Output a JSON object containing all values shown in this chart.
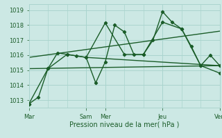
{
  "bg_color": "#cce8e4",
  "grid_color": "#aad4ce",
  "line_color": "#1a5c28",
  "xlabel": "Pression niveau de la mer( hPa )",
  "ylim": [
    1012.5,
    1019.4
  ],
  "yticks": [
    1013,
    1014,
    1015,
    1016,
    1017,
    1018,
    1019
  ],
  "xtick_labels": [
    "Mar",
    "",
    "",
    "Sam",
    "Mer",
    "",
    "",
    "Jeu",
    "",
    "",
    "Ven"
  ],
  "xtick_positions": [
    0,
    12,
    24,
    36,
    48,
    60,
    72,
    84,
    96,
    108,
    120
  ],
  "vline_positions": [
    0,
    36,
    48,
    84,
    120
  ],
  "total_x": 120,
  "series1_x": [
    0,
    6,
    12,
    18,
    24,
    30,
    36,
    42,
    48,
    54,
    60,
    66,
    72,
    78,
    84,
    90,
    96,
    102,
    108,
    114,
    120
  ],
  "series1_y": [
    1012.75,
    1013.2,
    1015.1,
    1016.15,
    1016.05,
    1015.95,
    1015.85,
    1014.15,
    1015.55,
    1018.0,
    1017.55,
    1016.05,
    1016.05,
    1017.0,
    1018.9,
    1018.2,
    1017.75,
    1016.6,
    1015.3,
    1016.0,
    1015.3
  ],
  "series2_x": [
    0,
    12,
    24,
    36,
    48,
    60,
    72,
    84,
    96,
    108,
    120
  ],
  "series2_y": [
    1012.75,
    1015.1,
    1016.05,
    1015.85,
    1018.15,
    1016.05,
    1016.05,
    1018.2,
    1017.75,
    1015.3,
    1014.8
  ],
  "trend1_x": [
    0,
    120
  ],
  "trend1_y": [
    1015.85,
    1017.6
  ],
  "trend2_x": [
    0,
    120
  ],
  "trend2_y": [
    1015.1,
    1015.3
  ],
  "trend3_x": [
    36,
    120
  ],
  "trend3_y": [
    1015.85,
    1015.3
  ]
}
